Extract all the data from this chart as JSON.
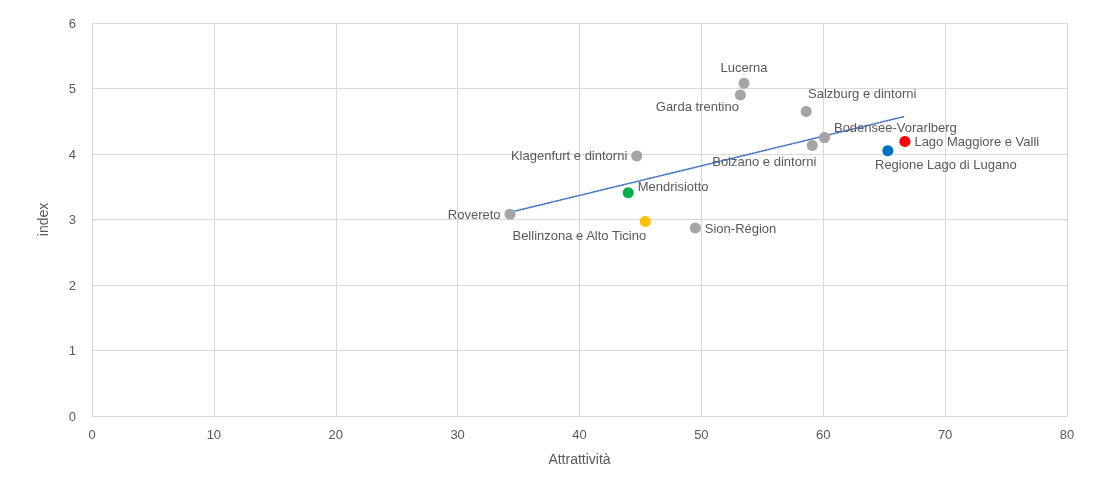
{
  "chart_data": {
    "type": "scatter",
    "xlabel": "Attrattività",
    "ylabel": "index",
    "xlim": [
      0,
      80
    ],
    "xticks": [
      0,
      10,
      20,
      30,
      40,
      50,
      60,
      70,
      80
    ],
    "ylim": [
      0,
      6
    ],
    "yticks": [
      0,
      1,
      2,
      3,
      4,
      5,
      6
    ],
    "grid": true,
    "legend": false,
    "marker": "circle",
    "series": [
      {
        "name": "Lucerna",
        "color": "#a5a5a5",
        "x": [
          53.5
        ],
        "values": [
          5.08
        ]
      },
      {
        "name": "Garda trentino",
        "color": "#a5a5a5",
        "x": [
          53.2
        ],
        "values": [
          4.9
        ]
      },
      {
        "name": "Salzburg e dintorni",
        "color": "#a5a5a5",
        "x": [
          58.6
        ],
        "values": [
          4.65
        ]
      },
      {
        "name": "Bodensee-Vorarlberg",
        "color": "#a5a5a5",
        "x": [
          60.1
        ],
        "values": [
          4.25
        ]
      },
      {
        "name": "Bolzano e dintorni",
        "color": "#a5a5a5",
        "x": [
          59.1
        ],
        "values": [
          4.13
        ]
      },
      {
        "name": "Lago Maggiore e Valli",
        "color": "#ff0000",
        "x": [
          66.7
        ],
        "values": [
          4.19
        ]
      },
      {
        "name": "Regione Lago di Lugano",
        "color": "#0070c0",
        "x": [
          65.3
        ],
        "values": [
          4.05
        ]
      },
      {
        "name": "Klagenfurt e dintorni",
        "color": "#a5a5a5",
        "x": [
          44.7
        ],
        "values": [
          3.97
        ]
      },
      {
        "name": "Mendrisiotto",
        "color": "#00b050",
        "x": [
          44.0
        ],
        "values": [
          3.41
        ]
      },
      {
        "name": "Rovereto",
        "color": "#a5a5a5",
        "x": [
          34.3
        ],
        "values": [
          3.08
        ]
      },
      {
        "name": "Bellinzona e Alto Ticino",
        "color": "#ffc000",
        "x": [
          45.4
        ],
        "values": [
          2.97
        ]
      },
      {
        "name": "Sion-Région",
        "color": "#a5a5a5",
        "x": [
          49.5
        ],
        "values": [
          2.87
        ]
      },
      {
        "type": "line",
        "color": "#4472c4",
        "line_style": "dotted",
        "marker": "none",
        "x": [
          34.3,
          66.6
        ],
        "values": [
          3.11,
          4.57
        ]
      }
    ]
  }
}
